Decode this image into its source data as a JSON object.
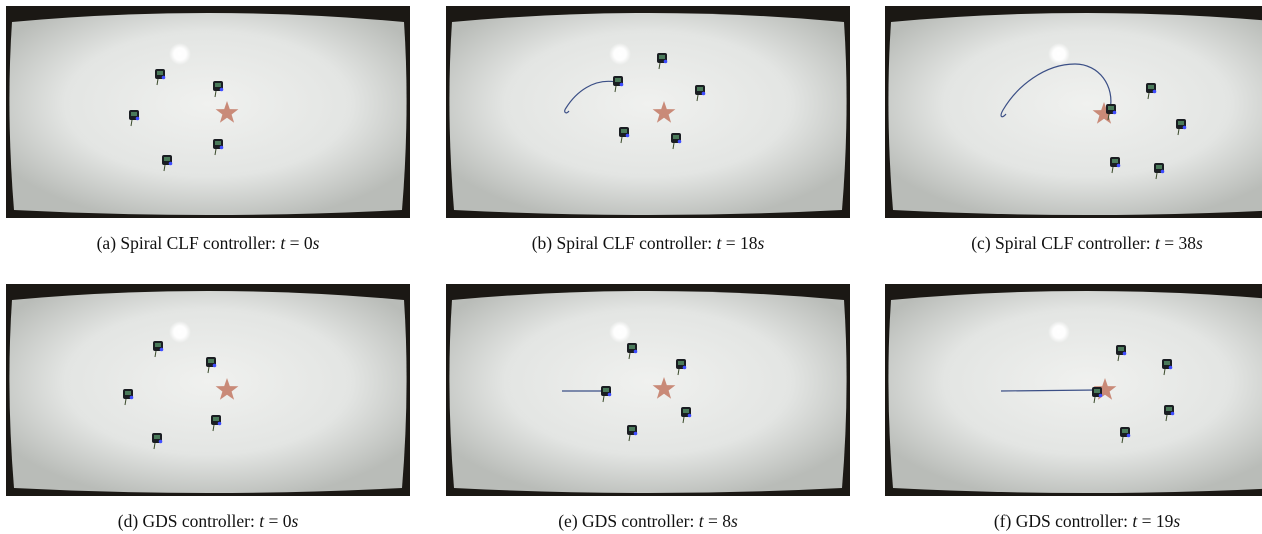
{
  "figure": {
    "panels": [
      {
        "label": "(a)",
        "text": "Spiral CLF controller:",
        "time_var": "t",
        "eq": " = ",
        "time_val": "0",
        "time_unit": "s",
        "trail": "none",
        "robot_count": 5
      },
      {
        "label": "(b)",
        "text": "Spiral CLF controller:",
        "time_var": "t",
        "eq": " = ",
        "time_val": "18",
        "time_unit": "s",
        "trail": "curl",
        "robot_count": 5
      },
      {
        "label": "(c)",
        "text": "Spiral CLF controller:",
        "time_var": "t",
        "eq": " = ",
        "time_val": "38",
        "time_unit": "s",
        "trail": "arc",
        "robot_count": 5
      },
      {
        "label": "(d)",
        "text": "GDS controller:",
        "time_var": "t",
        "eq": " = ",
        "time_val": "0",
        "time_unit": "s",
        "trail": "none",
        "robot_count": 5
      },
      {
        "label": "(e)",
        "text": "GDS controller:",
        "time_var": "t",
        "eq": " = ",
        "time_val": "8",
        "time_unit": "s",
        "trail": "line-short",
        "robot_count": 5
      },
      {
        "label": "(f)",
        "text": "GDS controller:",
        "time_var": "t",
        "eq": " = ",
        "time_val": "19",
        "time_unit": "s",
        "trail": "line-long",
        "robot_count": 5
      }
    ],
    "colors": {
      "frame": "#1b1814",
      "arena": "#e6e8e6",
      "star": "#c98a78",
      "trail": "#3b4f86",
      "robot": "#1a1d22",
      "led": "#3f4dff"
    }
  }
}
